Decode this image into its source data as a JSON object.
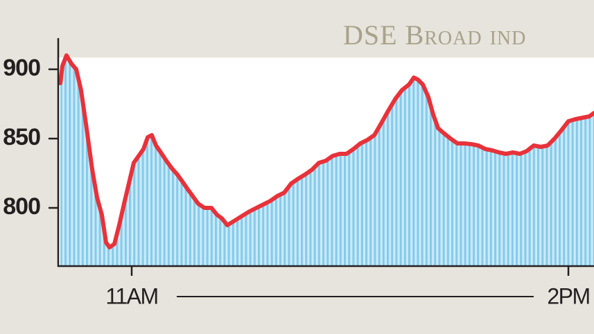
{
  "chart_data": {
    "type": "area",
    "title": "DSE Broad ind",
    "x": [
      10.51,
      10.524,
      10.552,
      10.586,
      10.619,
      10.652,
      10.69,
      10.729,
      10.762,
      10.795,
      10.824,
      10.848,
      10.881,
      10.914,
      10.952,
      10.986,
      11.014,
      11.048,
      11.081,
      11.11,
      11.138,
      11.167,
      11.2,
      11.238,
      11.276,
      11.314,
      11.348,
      11.381,
      11.419,
      11.457,
      11.5,
      11.548,
      11.586,
      11.619,
      11.657,
      11.695,
      11.733,
      11.771,
      11.81,
      11.857,
      11.905,
      11.952,
      12.0,
      12.048,
      12.095,
      12.143,
      12.19,
      12.238,
      12.286,
      12.333,
      12.381,
      12.429,
      12.476,
      12.524,
      12.571,
      12.619,
      12.667,
      12.714,
      12.762,
      12.81,
      12.857,
      12.905,
      12.938,
      12.967,
      13.0,
      13.038,
      13.071,
      13.105,
      13.143,
      13.19,
      13.238,
      13.286,
      13.333,
      13.381,
      13.429,
      13.476,
      13.524,
      13.571,
      13.619,
      13.667,
      13.714,
      13.762,
      13.81,
      13.857,
      13.905,
      13.952,
      14.0,
      14.048,
      14.095,
      14.143,
      14.176
    ],
    "series": [
      {
        "color": "#e8323a",
        "values": [
          890,
          902.5,
          910,
          904,
          900,
          885,
          857.5,
          827.5,
          807.5,
          795,
          775,
          771.5,
          774,
          787.5,
          805,
          820,
          832.5,
          837.5,
          842.5,
          851,
          852.5,
          845,
          840,
          834,
          828.5,
          824,
          819,
          814,
          808.5,
          803,
          800,
          800,
          795,
          792.5,
          787.5,
          790,
          792.5,
          795,
          797.5,
          800,
          802.5,
          805,
          808.5,
          811,
          817.5,
          821,
          824,
          827.5,
          832.5,
          834,
          837.5,
          839,
          839,
          842.5,
          846.5,
          849,
          852.5,
          861,
          870,
          878.5,
          885,
          889,
          894,
          892.5,
          889,
          880,
          867.5,
          857.5,
          854,
          850,
          846.5,
          846.5,
          846,
          845,
          842.5,
          841.5,
          840,
          839,
          840,
          839,
          841,
          845,
          844,
          845,
          850,
          856,
          862.5,
          864,
          865,
          866,
          868.5
        ]
      }
    ],
    "xlim": [
      10.5,
      14.176
    ],
    "ylim": [
      758.5,
      908.5
    ],
    "xticks": [
      {
        "value": 11,
        "label": "11AM"
      },
      {
        "value": 14,
        "label": "2PM"
      }
    ],
    "yticks": [
      900,
      850,
      800
    ],
    "grid": false
  }
}
